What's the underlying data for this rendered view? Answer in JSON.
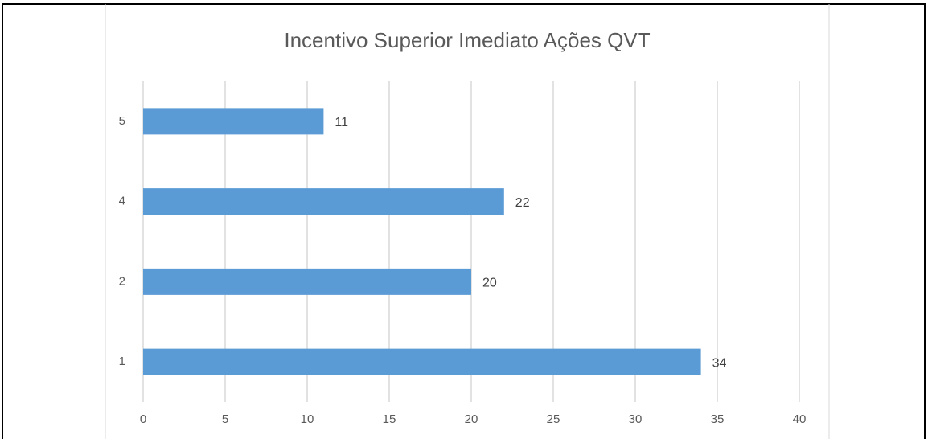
{
  "chart_data": {
    "type": "barh",
    "title": "Incentivo Superior Imediato Ações QVT",
    "categories": [
      "1",
      "2",
      "4",
      "5"
    ],
    "values": [
      34,
      20,
      22,
      11
    ],
    "color": "#5b9bd5",
    "xlim": [
      0,
      40
    ],
    "xticks": [
      0,
      5,
      10,
      15,
      20,
      25,
      30,
      35,
      40
    ],
    "grid": true
  }
}
